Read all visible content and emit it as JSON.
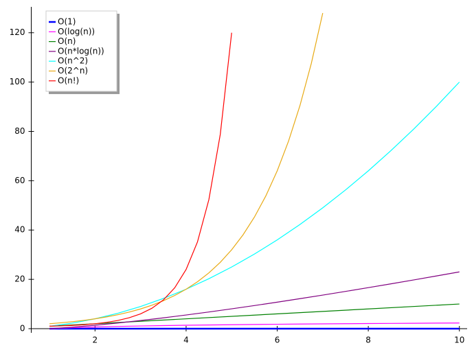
{
  "chart_data": {
    "type": "line",
    "xlim": [
      0.6,
      10.17
    ],
    "ylim": [
      0,
      130.5
    ],
    "xticks": [
      2,
      4,
      6,
      8,
      10
    ],
    "yticks": [
      0,
      20,
      40,
      60,
      80,
      100,
      120
    ],
    "legend": "upper left",
    "series": [
      {
        "name": "O(1)",
        "color": "#0000ff",
        "x": [
          1,
          10
        ],
        "values": [
          0,
          0
        ]
      },
      {
        "name": "O(log(n))",
        "color": "#ff00ff",
        "x": [
          1,
          1.5,
          2,
          2.5,
          3,
          3.5,
          4,
          4.5,
          5,
          5.5,
          6,
          6.5,
          7,
          7.5,
          8,
          8.5,
          9,
          9.5,
          10
        ],
        "values": [
          0,
          0.405,
          0.693,
          0.916,
          1.099,
          1.253,
          1.386,
          1.504,
          1.609,
          1.705,
          1.792,
          1.872,
          1.946,
          2.015,
          2.079,
          2.14,
          2.197,
          2.251,
          2.303
        ]
      },
      {
        "name": "O(n)",
        "color": "#008000",
        "x": [
          1,
          10
        ],
        "values": [
          1,
          10
        ]
      },
      {
        "name": "O(n*log(n))",
        "color": "#800080",
        "x": [
          1,
          1.5,
          2,
          2.5,
          3,
          3.5,
          4,
          4.5,
          5,
          5.5,
          6,
          6.5,
          7,
          7.5,
          8,
          8.5,
          9,
          9.5,
          10
        ],
        "values": [
          0,
          0.608,
          1.386,
          2.291,
          3.296,
          4.386,
          5.545,
          6.768,
          8.047,
          9.379,
          10.751,
          12.166,
          13.621,
          15.111,
          16.636,
          18.191,
          19.775,
          21.385,
          23.026
        ]
      },
      {
        "name": "O(n^2)",
        "color": "#00ffff",
        "x": [
          1,
          1.5,
          2,
          2.5,
          3,
          3.5,
          4,
          4.5,
          5,
          5.5,
          6,
          6.5,
          7,
          7.5,
          8,
          8.5,
          9,
          9.5,
          10
        ],
        "values": [
          1,
          2.25,
          4,
          6.25,
          9,
          12.25,
          16,
          20.25,
          25,
          30.25,
          36,
          42.25,
          49,
          56.25,
          64,
          72.25,
          81,
          90.25,
          100
        ]
      },
      {
        "name": "O(2^n)",
        "color": "#e8aa14",
        "x": [
          1,
          1.25,
          1.5,
          1.75,
          2,
          2.25,
          2.5,
          2.75,
          3,
          3.25,
          3.5,
          3.75,
          4,
          4.25,
          4.5,
          4.75,
          5,
          5.25,
          5.5,
          5.75,
          6,
          6.25,
          6.5,
          6.75,
          7
        ],
        "values": [
          2,
          2.378,
          2.828,
          3.364,
          4,
          4.757,
          5.657,
          6.727,
          8,
          9.514,
          11.314,
          13.454,
          16,
          19.027,
          22.627,
          26.909,
          32,
          38.055,
          45.255,
          53.817,
          64,
          76.109,
          90.51,
          107.635,
          128
        ]
      },
      {
        "name": "O(n!)",
        "color": "#ff0000",
        "x": [
          1,
          1.25,
          1.5,
          1.75,
          2,
          2.25,
          2.5,
          2.75,
          3,
          3.25,
          3.5,
          3.75,
          4,
          4.25,
          4.5,
          4.75,
          5
        ],
        "values": [
          1,
          1.133,
          1.329,
          1.608,
          2,
          2.549,
          3.323,
          4.423,
          6,
          8.285,
          11.632,
          16.586,
          24,
          35.212,
          52.343,
          78.784,
          120
        ]
      }
    ]
  }
}
